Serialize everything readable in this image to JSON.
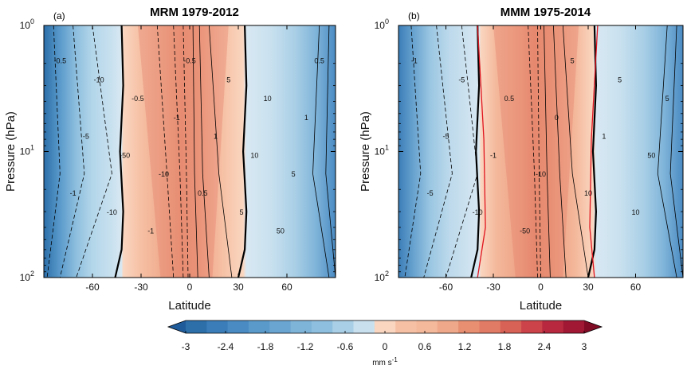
{
  "chart_data": [
    {
      "type": "heatmap",
      "panel_label": "(a)",
      "title": "MRM 1979-2012",
      "xlabel": "Latitude",
      "ylabel": "Pressure (hPa)",
      "xlim": [
        -90,
        90
      ],
      "x_ticks": [
        -60,
        -30,
        0,
        30,
        60
      ],
      "x_tick_labels": [
        "-60",
        "-30",
        "0",
        "30",
        "60"
      ],
      "y_scale": "log",
      "ylim": [
        100,
        1
      ],
      "y_ticks": [
        {
          "value": 1,
          "base": "10",
          "exp": "0"
        },
        {
          "value": 10,
          "base": "10",
          "exp": "1"
        },
        {
          "value": 100,
          "base": "10",
          "exp": "2"
        }
      ],
      "filled_field": {
        "boundary_lat": {
          "south_at_1hPa": -42,
          "south_at_100hPa": -40,
          "north_at_1hPa": 34,
          "north_at_100hPa": 34
        },
        "band_colors_by_lat": [
          [
            -90,
            "#2c6fa9"
          ],
          [
            -80,
            "#5a9acb"
          ],
          [
            -70,
            "#8ebfde"
          ],
          [
            -60,
            "#b3d6ea"
          ],
          [
            -48,
            "#c9e1ef"
          ],
          [
            -42,
            "#d8e8f2"
          ],
          [
            -41,
            "#fad6c0"
          ],
          [
            -30,
            "#f6c0a4"
          ],
          [
            -15,
            "#efa88a"
          ],
          [
            -5,
            "#ea9678"
          ],
          [
            5,
            "#ee9f82"
          ],
          [
            20,
            "#f6c0a4"
          ],
          [
            33,
            "#fad6c0"
          ],
          [
            35,
            "#d8e8f2"
          ],
          [
            50,
            "#c9e1ef"
          ],
          [
            65,
            "#a9cfe6"
          ],
          [
            78,
            "#7fb4d9"
          ],
          [
            90,
            "#4a8bc3"
          ]
        ]
      },
      "contour_labels": [
        "-0.5",
        "-1",
        "-5",
        "-10",
        "-10",
        "-50",
        "-0.5",
        "-1",
        "-10",
        "-1",
        "-0.5",
        "0.5",
        "1",
        "5",
        "5",
        "10",
        "10",
        "50",
        "5",
        "1",
        "0.5"
      ]
    },
    {
      "type": "heatmap",
      "panel_label": "(b)",
      "title": "MMM 1975-2014",
      "xlabel": "Latitude",
      "ylabel": "Pressure (hPa)",
      "xlim": [
        -90,
        90
      ],
      "x_ticks": [
        -60,
        -30,
        0,
        30,
        60
      ],
      "x_tick_labels": [
        "-60",
        "-30",
        "0",
        "30",
        "60"
      ],
      "y_scale": "log",
      "ylim": [
        100,
        1
      ],
      "y_ticks": [
        {
          "value": 1,
          "base": "10",
          "exp": "0"
        },
        {
          "value": 10,
          "base": "10",
          "exp": "1"
        },
        {
          "value": 100,
          "base": "10",
          "exp": "2"
        }
      ],
      "filled_field": {
        "boundary_lat": {
          "south_at_1hPa": -40,
          "south_at_100hPa": -38,
          "north_at_1hPa": 34,
          "north_at_100hPa": 34
        },
        "red_line_lat": {
          "south": -36,
          "north": 32
        },
        "band_colors_by_lat": [
          [
            -90,
            "#3b7db8"
          ],
          [
            -80,
            "#6aa4d0"
          ],
          [
            -70,
            "#9ac6e2"
          ],
          [
            -58,
            "#bcd9eb"
          ],
          [
            -45,
            "#cfe3f0"
          ],
          [
            -39,
            "#d8e8f2"
          ],
          [
            -38,
            "#fad6c0"
          ],
          [
            -28,
            "#f4b89b"
          ],
          [
            -12,
            "#eea184"
          ],
          [
            -4,
            "#e88f72"
          ],
          [
            6,
            "#ec9a7c"
          ],
          [
            22,
            "#f4b89b"
          ],
          [
            33,
            "#fad6c0"
          ],
          [
            35,
            "#d8e8f2"
          ],
          [
            50,
            "#c9e1ef"
          ],
          [
            65,
            "#a9cfe6"
          ],
          [
            78,
            "#7fb4d9"
          ],
          [
            90,
            "#4a8bc3"
          ]
        ]
      },
      "contour_labels": [
        "-1",
        "-5",
        "-5",
        "-5",
        "-10",
        "-1",
        "0.5",
        "-50",
        "-10",
        "0",
        "5",
        "10",
        "1",
        "5",
        "10",
        "50",
        "5"
      ]
    }
  ],
  "colorbar": {
    "ticks": [
      -3,
      -2.4,
      -1.8,
      -1.2,
      -0.6,
      0,
      0.6,
      1.2,
      1.8,
      2.4,
      3
    ],
    "tick_labels": [
      "-3",
      "-2.4",
      "-1.8",
      "-1.2",
      "-0.6",
      "0",
      "0.6",
      "1.2",
      "1.8",
      "2.4",
      "3"
    ],
    "range": [
      -3,
      3
    ],
    "step": 0.3,
    "extend": "both",
    "units_base": "mm s",
    "units_exp": "-1",
    "colors": [
      "#1f5b9a",
      "#2c6fa9",
      "#3b7db8",
      "#4a8bc3",
      "#5a9acb",
      "#6aa4d0",
      "#7fb4d9",
      "#8ebfde",
      "#a9cfe6",
      "#c9e1ef",
      "#fad6c0",
      "#f6c0a4",
      "#f4b89b",
      "#efa88a",
      "#e88f72",
      "#e27b66",
      "#d96256",
      "#cc4449",
      "#b8293f",
      "#a01833",
      "#800b24"
    ]
  }
}
